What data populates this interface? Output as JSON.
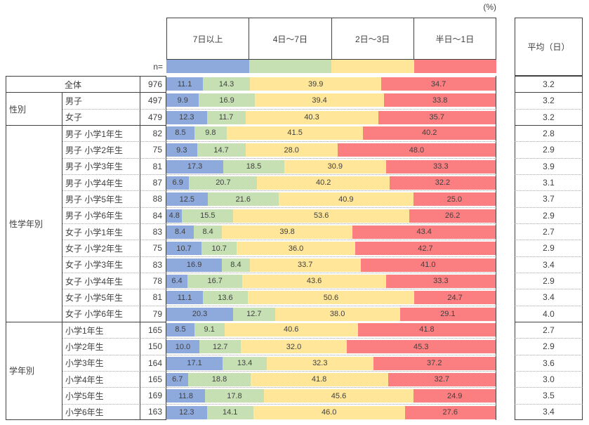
{
  "percent_label": "(%)",
  "n_label": "n=",
  "average_header": "平均（日）",
  "style_colors": {
    "border_solid": "#404040",
    "border_dotted": "#A6A6A6",
    "text": "#404040"
  },
  "chart_data": {
    "type": "bar",
    "subtype": "horizontal-stacked-100pct",
    "unit": "%",
    "value_range": [
      0,
      100
    ],
    "series_labels": [
      "7日以上",
      "4日〜7日",
      "2日〜3日",
      "半日〜1日"
    ],
    "series_colors": [
      "#8EA9DB",
      "#C6E0B4",
      "#FFE699",
      "#FB7E81"
    ],
    "n_column_label": "n=",
    "average_column_label": "平均（日）",
    "groups": [
      {
        "group": null,
        "rows": [
          {
            "label": "全体",
            "n": 976,
            "values": [
              11.1,
              14.3,
              39.9,
              34.7
            ],
            "average": 3.2
          }
        ]
      },
      {
        "group": "性別",
        "rows": [
          {
            "label": "男子",
            "n": 497,
            "values": [
              9.9,
              16.9,
              39.4,
              33.8
            ],
            "average": 3.2
          },
          {
            "label": "女子",
            "n": 479,
            "values": [
              12.3,
              11.7,
              40.3,
              35.7
            ],
            "average": 3.2
          }
        ]
      },
      {
        "group": "性学年別",
        "rows": [
          {
            "label": "男子 小学1年生",
            "n": 82,
            "values": [
              8.5,
              9.8,
              41.5,
              40.2
            ],
            "average": 2.8
          },
          {
            "label": "男子 小学2年生",
            "n": 75,
            "values": [
              9.3,
              14.7,
              28.0,
              48.0
            ],
            "average": 2.9
          },
          {
            "label": "男子 小学3年生",
            "n": 81,
            "values": [
              17.3,
              18.5,
              30.9,
              33.3
            ],
            "average": 3.9
          },
          {
            "label": "男子 小学4年生",
            "n": 87,
            "values": [
              6.9,
              20.7,
              40.2,
              32.2
            ],
            "average": 3.1
          },
          {
            "label": "男子 小学5年生",
            "n": 88,
            "values": [
              12.5,
              21.6,
              40.9,
              25.0
            ],
            "average": 3.7
          },
          {
            "label": "男子 小学6年生",
            "n": 84,
            "values": [
              4.8,
              15.5,
              53.6,
              26.2
            ],
            "average": 2.9
          },
          {
            "label": "女子 小学1年生",
            "n": 83,
            "values": [
              8.4,
              8.4,
              39.8,
              43.4
            ],
            "average": 2.7
          },
          {
            "label": "女子 小学2年生",
            "n": 75,
            "values": [
              10.7,
              10.7,
              36.0,
              42.7
            ],
            "average": 2.9
          },
          {
            "label": "女子 小学3年生",
            "n": 83,
            "values": [
              16.9,
              8.4,
              33.7,
              41.0
            ],
            "average": 3.4
          },
          {
            "label": "女子 小学4年生",
            "n": 78,
            "values": [
              6.4,
              16.7,
              43.6,
              33.3
            ],
            "average": 2.9
          },
          {
            "label": "女子 小学5年生",
            "n": 81,
            "values": [
              11.1,
              13.6,
              50.6,
              24.7
            ],
            "average": 3.4
          },
          {
            "label": "女子 小学6年生",
            "n": 79,
            "values": [
              20.3,
              12.7,
              38.0,
              29.1
            ],
            "average": 4.0
          }
        ]
      },
      {
        "group": "学年別",
        "rows": [
          {
            "label": "小学1年生",
            "n": 165,
            "values": [
              8.5,
              9.1,
              40.6,
              41.8
            ],
            "average": 2.7
          },
          {
            "label": "小学2年生",
            "n": 150,
            "values": [
              10.0,
              12.7,
              32.0,
              45.3
            ],
            "average": 2.9
          },
          {
            "label": "小学3年生",
            "n": 164,
            "values": [
              17.1,
              13.4,
              32.3,
              37.2
            ],
            "average": 3.6
          },
          {
            "label": "小学4年生",
            "n": 165,
            "values": [
              6.7,
              18.8,
              41.8,
              32.7
            ],
            "average": 3.0
          },
          {
            "label": "小学5年生",
            "n": 169,
            "values": [
              11.8,
              17.8,
              45.6,
              24.9
            ],
            "average": 3.5
          },
          {
            "label": "小学6年生",
            "n": 163,
            "values": [
              12.3,
              14.1,
              46.0,
              27.6
            ],
            "average": 3.4
          }
        ]
      }
    ]
  }
}
